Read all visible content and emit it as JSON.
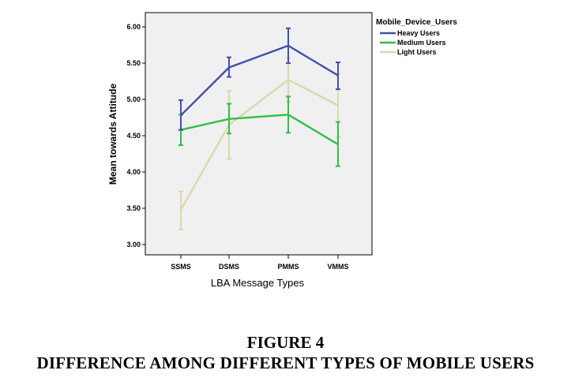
{
  "figure": {
    "number": "FIGURE 4",
    "title": "DIFFERENCE AMONG DIFFERENT TYPES OF MOBILE USERS"
  },
  "chart_data": {
    "type": "line",
    "xlabel": "LBA Message Types",
    "ylabel": "Mean towards Attitude",
    "categories": [
      "SSMS",
      "DSMS",
      "PMMS",
      "VMMS"
    ],
    "ylim": [
      2.9,
      6.1
    ],
    "yticks": [
      "3.00",
      "3.50",
      "4.00",
      "4.50",
      "5.00",
      "5.50",
      "6.00"
    ],
    "legend": {
      "title": "Mobile_Device_Users",
      "position": "right"
    },
    "grid": false,
    "series": [
      {
        "name": "Heavy Users",
        "color": "#3f4fae",
        "values": [
          4.78,
          5.44,
          5.74,
          5.33
        ],
        "err_low": [
          4.58,
          5.31,
          5.5,
          5.14
        ],
        "err_high": [
          4.99,
          5.58,
          5.98,
          5.51
        ]
      },
      {
        "name": "Medium Users",
        "color": "#2fc042",
        "values": [
          4.58,
          4.73,
          4.79,
          4.38
        ],
        "err_low": [
          4.37,
          4.53,
          4.54,
          4.08
        ],
        "err_high": [
          4.79,
          4.94,
          5.04,
          4.69
        ]
      },
      {
        "name": "Light Users",
        "color": "#dcd7ad",
        "values": [
          3.48,
          4.65,
          5.27,
          4.92
        ],
        "err_low": [
          3.21,
          4.18,
          4.97,
          4.48
        ],
        "err_high": [
          3.73,
          5.12,
          5.57,
          5.35
        ]
      }
    ]
  }
}
